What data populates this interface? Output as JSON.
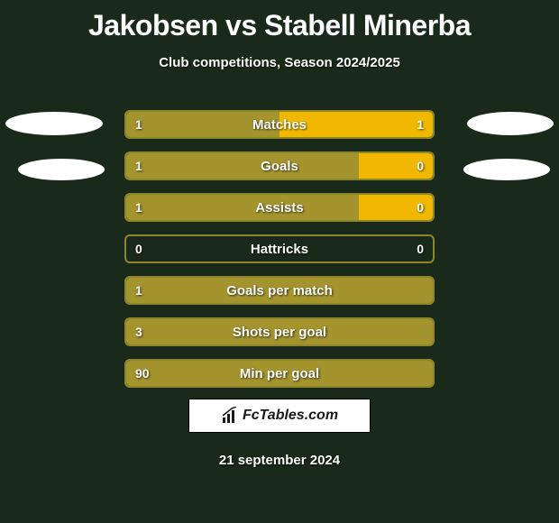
{
  "title": "Jakobsen vs Stabell Minerba",
  "subtitle": "Club competitions, Season 2024/2025",
  "date": "21 september 2024",
  "logo_text": "FcTables.com",
  "colors": {
    "bg": "#1a2a1a",
    "bar_left": "#a4942e",
    "bar_right": "#f0b800",
    "border": "#a4942e",
    "text": "#ffffff"
  },
  "bars": [
    {
      "label": "Matches",
      "left_val": "1",
      "right_val": "1",
      "left_pct": 50,
      "right_pct": 50,
      "left_color": "#a4942e",
      "right_color": "#f0b800"
    },
    {
      "label": "Goals",
      "left_val": "1",
      "right_val": "0",
      "left_pct": 76,
      "right_pct": 24,
      "left_color": "#a4942e",
      "right_color": "#f0b800"
    },
    {
      "label": "Assists",
      "left_val": "1",
      "right_val": "0",
      "left_pct": 76,
      "right_pct": 24,
      "left_color": "#a4942e",
      "right_color": "#f0b800"
    },
    {
      "label": "Hattricks",
      "left_val": "0",
      "right_val": "0",
      "left_pct": 0,
      "right_pct": 0,
      "left_color": "#a4942e",
      "right_color": "#f0b800"
    },
    {
      "label": "Goals per match",
      "left_val": "1",
      "right_val": "",
      "left_pct": 100,
      "right_pct": 0,
      "left_color": "#a4942e",
      "right_color": "#f0b800"
    },
    {
      "label": "Shots per goal",
      "left_val": "3",
      "right_val": "",
      "left_pct": 100,
      "right_pct": 0,
      "left_color": "#a4942e",
      "right_color": "#f0b800"
    },
    {
      "label": "Min per goal",
      "left_val": "90",
      "right_val": "",
      "left_pct": 100,
      "right_pct": 0,
      "left_color": "#a4942e",
      "right_color": "#f0b800"
    }
  ]
}
